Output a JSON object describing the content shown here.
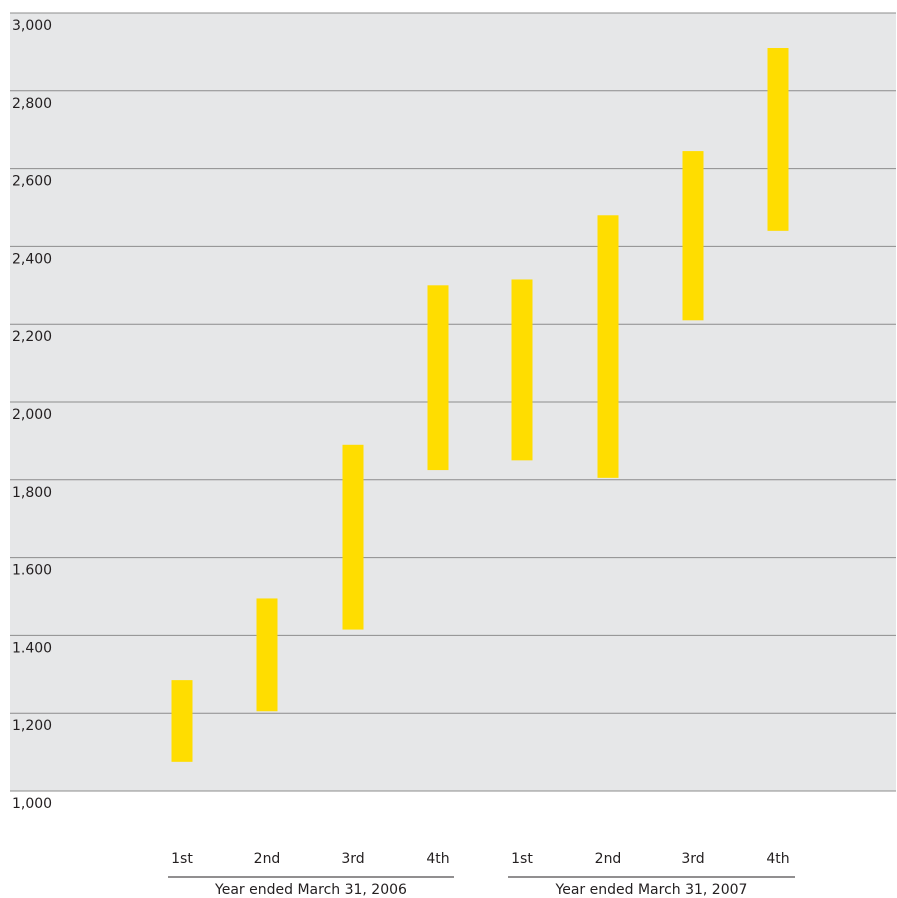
{
  "chart_data": {
    "type": "bar",
    "subtype": "floating-range",
    "title": "",
    "xlabel": "",
    "ylabel": "",
    "ylim": [
      1000,
      3000
    ],
    "y_ticks": [
      1000,
      1200,
      1400,
      1600,
      1800,
      2000,
      2200,
      2400,
      2600,
      2800,
      3000
    ],
    "y_tick_labels": [
      "1,000",
      "1,200",
      "1.400",
      "1.600",
      "1,800",
      "2,000",
      "2,200",
      "2,400",
      "2,600",
      "2,800",
      "3,000"
    ],
    "grid": true,
    "categories": [
      "1st",
      "2nd",
      "3rd",
      "4th",
      "1st",
      "2nd",
      "3rd",
      "4th"
    ],
    "groups": [
      {
        "label": "Year ended March 31, 2006",
        "categories": [
          "1st",
          "2nd",
          "3rd",
          "4th"
        ]
      },
      {
        "label": "Year ended March 31, 2007",
        "categories": [
          "1st",
          "2nd",
          "3rd",
          "4th"
        ]
      }
    ],
    "series": [
      {
        "low": [
          1075,
          1205,
          1415,
          1825,
          1850,
          1805,
          2210,
          2440
        ],
        "high": [
          1285,
          1495,
          1890,
          2300,
          2315,
          2480,
          2645,
          2910
        ]
      }
    ],
    "colors": {
      "bar": "#ffdd00",
      "plot_background": "#e6e7e8",
      "gridline": "#8c8c8c",
      "text": "#231f20"
    }
  }
}
